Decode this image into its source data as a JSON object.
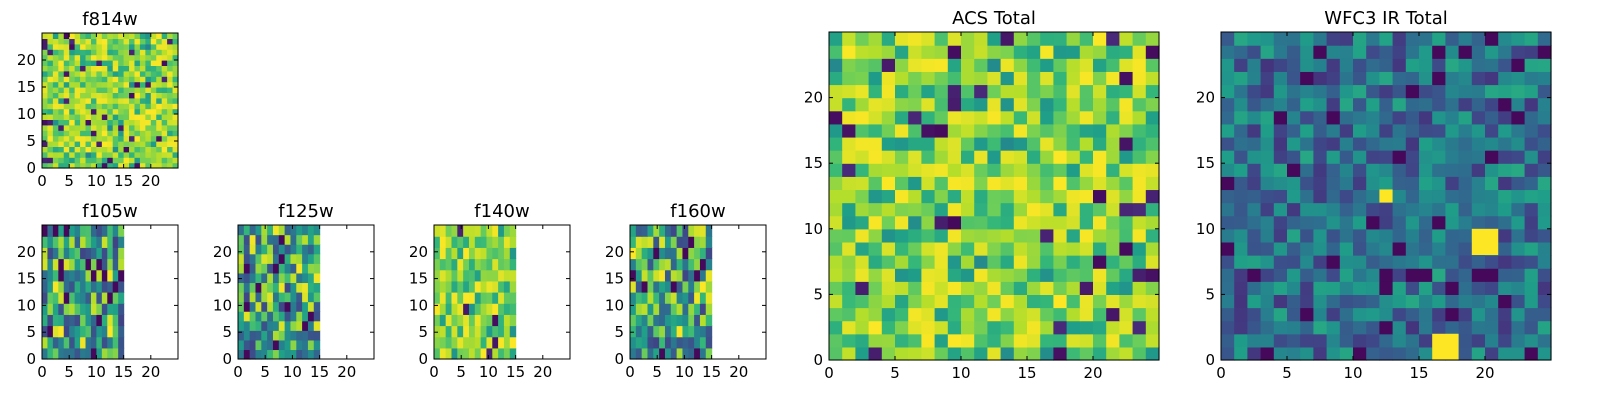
{
  "colors": {
    "viridis_dark": "#440154",
    "viridis_mid": "#21918c",
    "viridis_bright": "#fde725",
    "axis": "#000000",
    "background": "#ffffff"
  },
  "chart_data": [
    {
      "id": "f814w",
      "type": "heatmap",
      "title": "f814w",
      "xticks": [
        "0",
        "5",
        "10",
        "15",
        "20"
      ],
      "yticks": [
        "0",
        "5",
        "10",
        "15",
        "20"
      ],
      "xlim": [
        0,
        25
      ],
      "ylim": [
        0,
        25
      ],
      "grid_cols": 25,
      "grid_rows": 25,
      "filled_x_extent": 25,
      "value_range": [
        0,
        1
      ],
      "palette_bias": "bright",
      "seed": 11
    },
    {
      "id": "f105w",
      "type": "heatmap",
      "title": "f105w",
      "xticks": [
        "0",
        "5",
        "10",
        "15",
        "20"
      ],
      "yticks": [
        "0",
        "5",
        "10",
        "15",
        "20"
      ],
      "xlim": [
        0,
        25
      ],
      "ylim": [
        0,
        25
      ],
      "grid_cols": 15,
      "grid_rows": 12,
      "filled_x_extent": 15,
      "value_range": [
        0,
        1
      ],
      "palette_bias": "mid",
      "seed": 23
    },
    {
      "id": "f125w",
      "type": "heatmap",
      "title": "f125w",
      "xticks": [
        "0",
        "5",
        "10",
        "15",
        "20"
      ],
      "yticks": [
        "0",
        "5",
        "10",
        "15",
        "20"
      ],
      "xlim": [
        0,
        25
      ],
      "ylim": [
        0,
        25
      ],
      "grid_cols": 14,
      "grid_rows": 14,
      "filled_x_extent": 15,
      "value_range": [
        0,
        1
      ],
      "palette_bias": "mid",
      "seed": 37
    },
    {
      "id": "f140w",
      "type": "heatmap",
      "title": "f140w",
      "xticks": [
        "0",
        "5",
        "10",
        "15",
        "20"
      ],
      "yticks": [
        "0",
        "5",
        "10",
        "15",
        "20"
      ],
      "xlim": [
        0,
        25
      ],
      "ylim": [
        0,
        25
      ],
      "grid_cols": 14,
      "grid_rows": 12,
      "filled_x_extent": 15,
      "value_range": [
        0,
        1
      ],
      "palette_bias": "bright",
      "seed": 41
    },
    {
      "id": "f160w",
      "type": "heatmap",
      "title": "f160w",
      "xticks": [
        "0",
        "5",
        "10",
        "15",
        "20"
      ],
      "yticks": [
        "0",
        "5",
        "10",
        "15",
        "20"
      ],
      "xlim": [
        0,
        25
      ],
      "ylim": [
        0,
        25
      ],
      "grid_cols": 14,
      "grid_rows": 12,
      "filled_x_extent": 15,
      "value_range": [
        0,
        1
      ],
      "palette_bias": "mid",
      "seed": 53
    },
    {
      "id": "acs-total",
      "type": "heatmap",
      "title": "ACS Total",
      "xticks": [
        "0",
        "5",
        "10",
        "15",
        "20"
      ],
      "yticks": [
        "0",
        "5",
        "10",
        "15",
        "20"
      ],
      "xlim": [
        0,
        25
      ],
      "ylim": [
        0,
        25
      ],
      "grid_cols": 25,
      "grid_rows": 25,
      "filled_x_extent": 25,
      "value_range": [
        0,
        1
      ],
      "palette_bias": "bright",
      "seed": 67
    },
    {
      "id": "wfc3-ir-total",
      "type": "heatmap",
      "title": "WFC3 IR Total",
      "xticks": [
        "0",
        "5",
        "10",
        "15",
        "20"
      ],
      "yticks": [
        "0",
        "5",
        "10",
        "15",
        "20"
      ],
      "xlim": [
        0,
        25
      ],
      "ylim": [
        0,
        25
      ],
      "grid_cols": 25,
      "grid_rows": 25,
      "filled_x_extent": 25,
      "value_range": [
        0,
        1
      ],
      "palette_bias": "dark",
      "seed": 79,
      "hot_spots": [
        {
          "x": 12,
          "y": 12,
          "w": 1,
          "h": 1
        },
        {
          "x": 19,
          "y": 8,
          "w": 2,
          "h": 2
        },
        {
          "x": 16,
          "y": 0,
          "w": 2,
          "h": 2
        }
      ]
    }
  ]
}
